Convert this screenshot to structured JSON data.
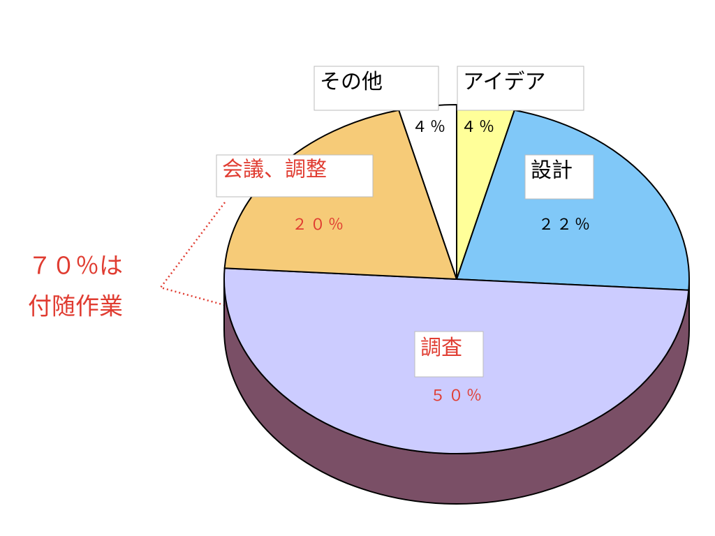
{
  "chart_data": {
    "type": "pie",
    "categories": [
      "アイデア",
      "設計",
      "調査",
      "会議、調整",
      "その他"
    ],
    "values": [
      4,
      22,
      50,
      20,
      4
    ],
    "value_labels": [
      "４％",
      "２２％",
      "５０％",
      "２０％",
      "４％"
    ],
    "colors": [
      "#ffff99",
      "#80c8f8",
      "#ccccff",
      "#f6cb78",
      "#ffffff"
    ],
    "label_colors": [
      "#000000",
      "#000000",
      "#e03c31",
      "#e03c31",
      "#000000"
    ],
    "side_color": "#7a4f66",
    "annotation": [
      "７０％は",
      "付随作業"
    ],
    "annotation_color": "#e03c31"
  }
}
